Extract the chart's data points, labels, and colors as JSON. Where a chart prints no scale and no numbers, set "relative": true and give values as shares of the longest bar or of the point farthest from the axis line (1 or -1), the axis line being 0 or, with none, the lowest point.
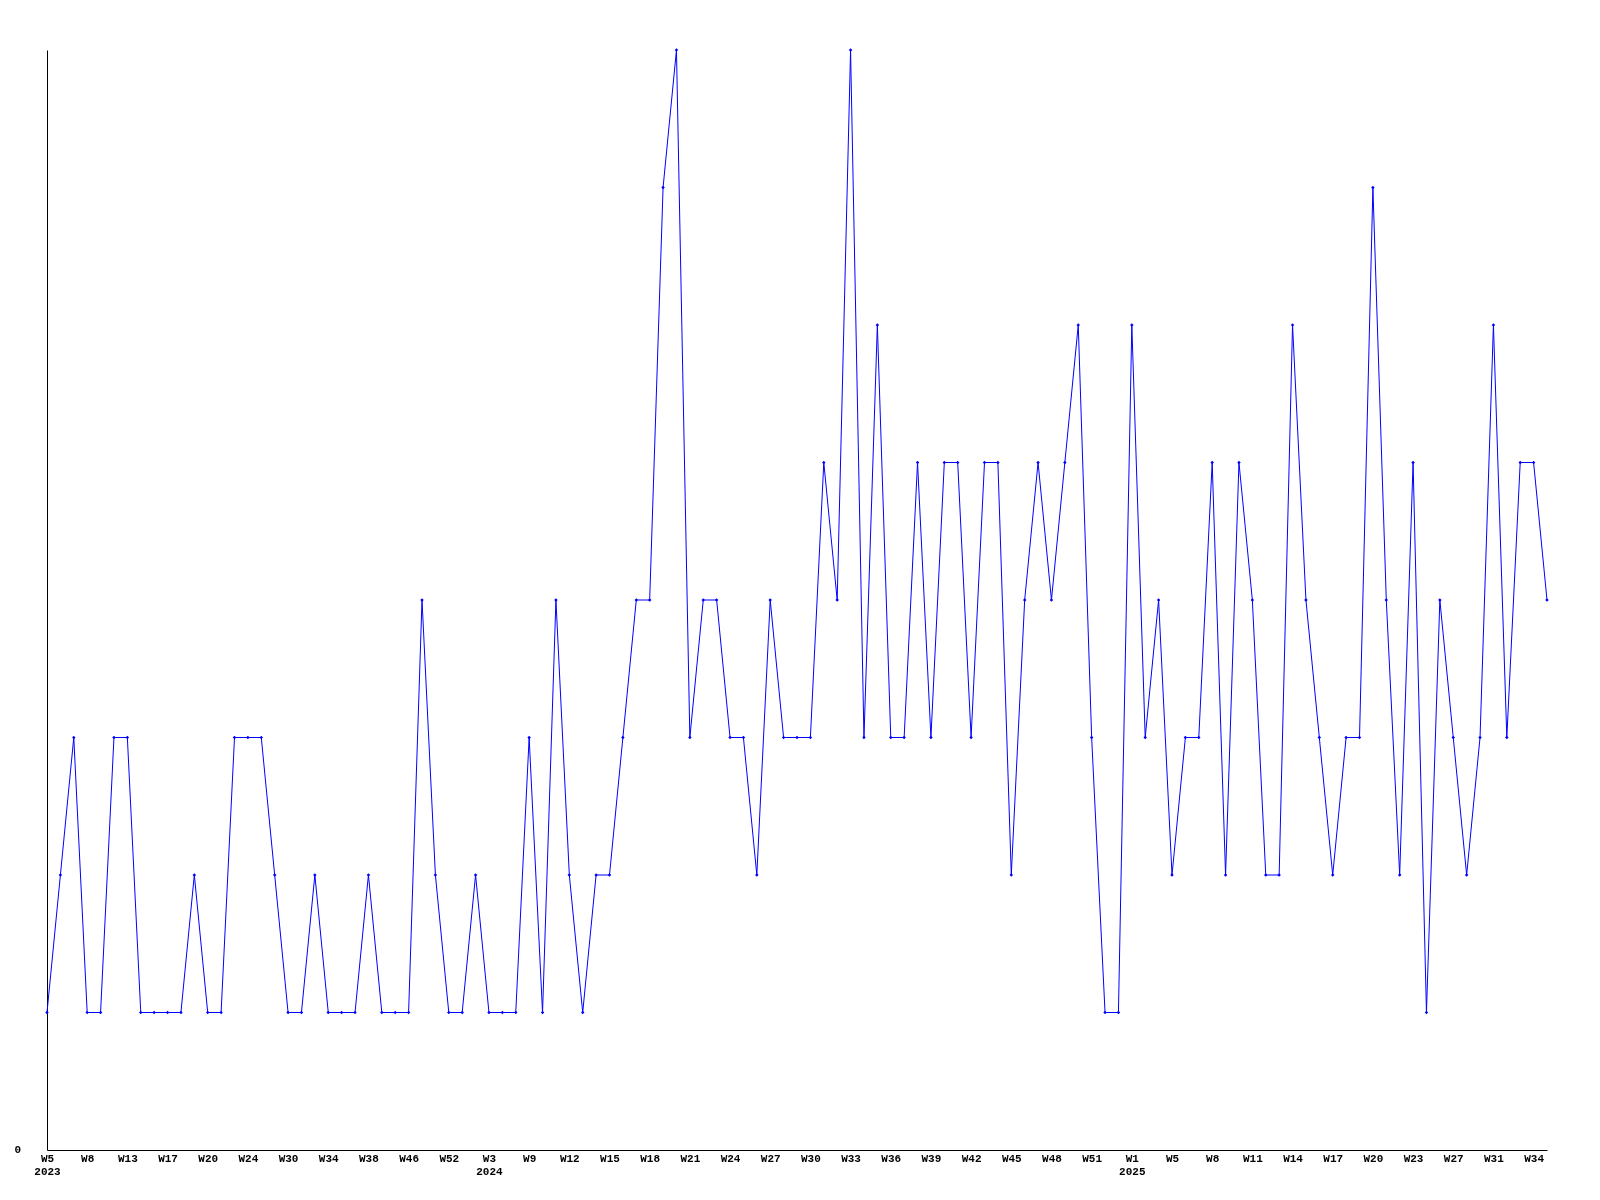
{
  "chart_data": {
    "type": "line",
    "relative": true,
    "marker": "diamond",
    "line_style": "solid",
    "grid": false,
    "annotations": [
      "0"
    ],
    "categories": [
      "W5\n2023",
      null,
      null,
      "W8",
      null,
      null,
      "W13",
      null,
      null,
      "W17",
      null,
      null,
      "W20",
      null,
      null,
      "W24",
      null,
      null,
      "W30",
      null,
      null,
      "W34",
      null,
      null,
      "W38",
      null,
      null,
      "W46",
      null,
      null,
      "W52",
      null,
      null,
      "W3\n2024",
      null,
      null,
      "W9",
      null,
      null,
      "W12",
      null,
      null,
      "W15",
      null,
      null,
      "W18",
      null,
      null,
      "W21",
      null,
      null,
      "W24",
      null,
      null,
      "W27",
      null,
      null,
      "W30",
      null,
      null,
      "W33",
      null,
      null,
      "W36",
      null,
      null,
      "W39",
      null,
      null,
      "W42",
      null,
      null,
      "W45",
      null,
      null,
      "W48",
      null,
      null,
      "W51",
      null,
      null,
      "W1\n2025",
      null,
      null,
      "W5",
      null,
      null,
      "W8",
      null,
      null,
      "W11",
      null,
      null,
      "W14",
      null,
      null,
      "W17",
      null,
      null,
      "W20",
      null,
      null,
      "W23",
      null,
      null,
      "W27",
      null,
      null,
      "W31",
      null,
      null,
      "W34",
      null
    ],
    "series": [
      {
        "color": "#0000ff",
        "values": [
          0.125,
          0.25,
          0.375,
          0.125,
          0.125,
          0.375,
          0.375,
          0.125,
          0.125,
          0.125,
          0.125,
          0.25,
          0.125,
          0.125,
          0.375,
          0.375,
          0.375,
          0.25,
          0.125,
          0.125,
          0.25,
          0.125,
          0.125,
          0.125,
          0.25,
          0.125,
          0.125,
          0.125,
          0.5,
          0.25,
          0.125,
          0.125,
          0.25,
          0.125,
          0.125,
          0.125,
          0.375,
          0.125,
          0.5,
          0.25,
          0.125,
          0.25,
          0.25,
          0.375,
          0.5,
          0.5,
          0.875,
          1,
          0.375,
          0.5,
          0.5,
          0.375,
          0.375,
          0.25,
          0.5,
          0.375,
          0.375,
          0.375,
          0.625,
          0.5,
          1,
          0.375,
          0.75,
          0.375,
          0.375,
          0.625,
          0.375,
          0.625,
          0.625,
          0.375,
          0.625,
          0.625,
          0.25,
          0.5,
          0.625,
          0.5,
          0.625,
          0.75,
          0.375,
          0.125,
          0.125,
          0.75,
          0.375,
          0.5,
          0.25,
          0.375,
          0.375,
          0.625,
          0.25,
          0.625,
          0.5,
          0.25,
          0.25,
          0.75,
          0.5,
          0.375,
          0.25,
          0.375,
          0.375,
          0.875,
          0.5,
          0.25,
          0.625,
          0.125,
          0.5,
          0.375,
          0.25,
          0.375,
          0.75,
          0.375,
          0.625,
          0.625,
          0.5
        ]
      }
    ]
  }
}
